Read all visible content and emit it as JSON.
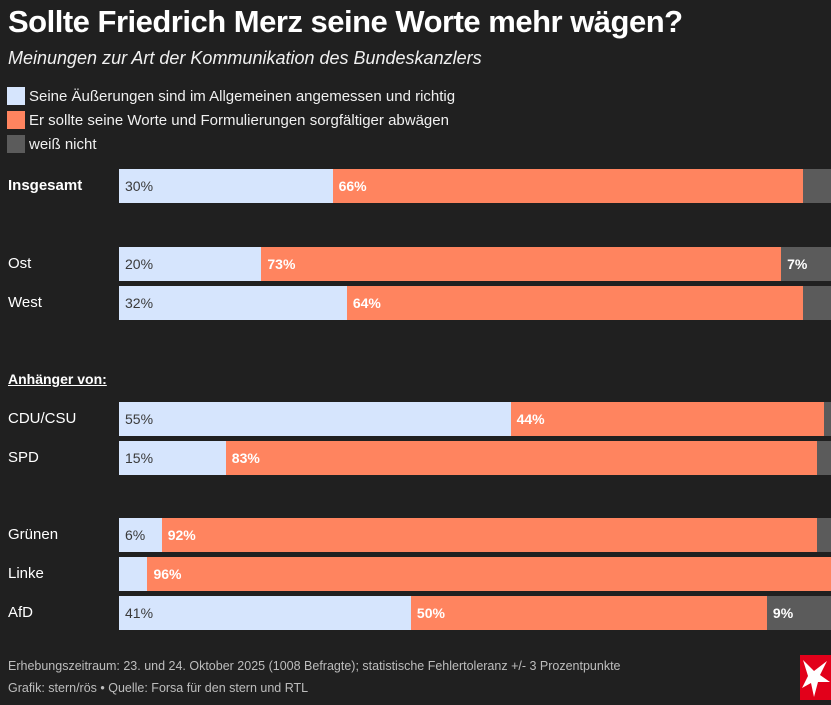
{
  "colors": {
    "background": "#202020",
    "angemessen": "#d6e5fd",
    "sorgfaeltiger": "#ff845f",
    "weiss_nicht": "#5b5b5b",
    "logo_red": "#e2001a"
  },
  "header": {
    "title": "Sollte Friedrich Merz seine Worte mehr wägen?",
    "subtitle": "Meinungen zur Art der Kommunikation des Bundeskanzlers"
  },
  "chart_data": {
    "type": "bar",
    "orientation": "horizontal",
    "stacked": true,
    "title": "Sollte Friedrich Merz seine Worte mehr wägen?",
    "subtitle": "Meinungen zur Art der Kommunikation des Bundeskanzlers",
    "unit": "%",
    "xlim": [
      0,
      100
    ],
    "legend_position": "top-left",
    "legend": [
      "Seine Äußerungen sind im Allgemeinen angemessen und richtig",
      "Er sollte seine Worte und Formulierungen sorgfältiger abwägen",
      "weiß nicht"
    ],
    "group_label": "Anhänger von:",
    "categories": [
      "Insgesamt",
      "Ost",
      "West",
      "CDU/CSU",
      "SPD",
      "Grünen",
      "Linke",
      "AfD"
    ],
    "series": [
      {
        "name": "Seine Äußerungen sind im Allgemeinen angemessen und richtig",
        "values": [
          30,
          20,
          32,
          55,
          15,
          6,
          4,
          41
        ],
        "labels": [
          "30%",
          "20%",
          "32%",
          "55%",
          "15%",
          "6%",
          "",
          "41%"
        ]
      },
      {
        "name": "Er sollte seine Worte und Formulierungen sorgfältiger abwägen",
        "values": [
          66,
          73,
          64,
          44,
          83,
          92,
          96,
          50
        ],
        "labels": [
          "66%",
          "73%",
          "64%",
          "44%",
          "83%",
          "92%",
          "96%",
          "50%"
        ]
      },
      {
        "name": "weiß nicht",
        "values": [
          4,
          7,
          4,
          1,
          2,
          2,
          0,
          9
        ],
        "labels": [
          "",
          "7%",
          "",
          "",
          "",
          "",
          "",
          "9%"
        ]
      }
    ]
  },
  "footer": {
    "line1": "Erhebungszeitraum: 23. und 24. Oktober 2025 (1008 Befragte); statistische Fehlertoleranz +/- 3 Prozentpunkte",
    "line2": "Grafik: stern/rös • Quelle: Forsa für den stern und RTL",
    "logo": "stern-logo"
  }
}
